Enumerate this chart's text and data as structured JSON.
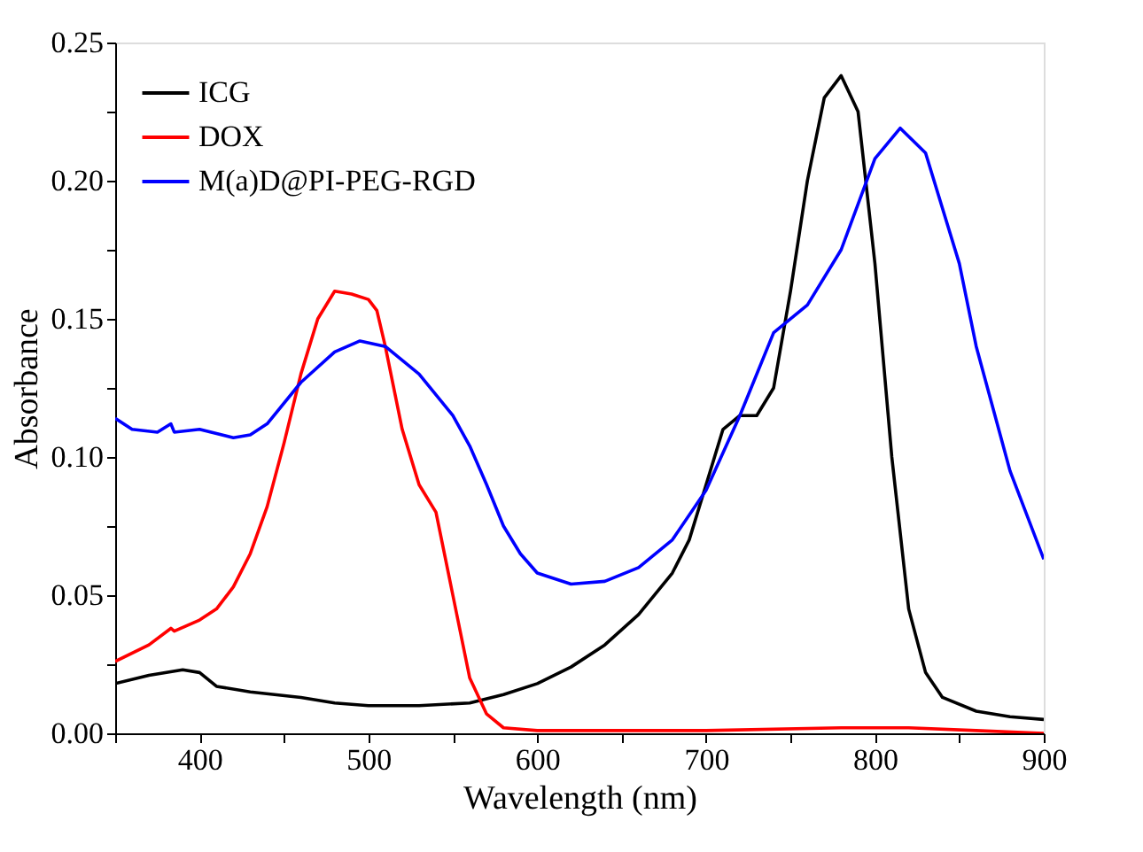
{
  "chart_data": {
    "type": "line",
    "xlabel": "Wavelength (nm)",
    "ylabel": "Absorbance",
    "xlim": [
      350,
      900
    ],
    "xticks": [
      {
        "value": 350,
        "label": null
      },
      400,
      {
        "value": 450,
        "label": null
      },
      500,
      {
        "value": 550,
        "label": null
      },
      600,
      {
        "value": 650,
        "label": null
      },
      700,
      {
        "value": 750,
        "label": null
      },
      800,
      {
        "value": 850,
        "label": null
      },
      900
    ],
    "ylim": [
      0,
      0.25
    ],
    "yticks": [
      {
        "value": 0,
        "label": "0.00"
      },
      {
        "value": 0.025,
        "label": null
      },
      0.05,
      {
        "value": 0.075,
        "label": null
      },
      {
        "value": 0.1,
        "label": "0.10"
      },
      {
        "value": 0.125,
        "label": null
      },
      0.15,
      {
        "value": 0.175,
        "label": null
      },
      {
        "value": 0.2,
        "label": "0.20"
      },
      {
        "value": 0.225,
        "label": null
      },
      0.25
    ],
    "legend": "top left",
    "grid": false,
    "marker": "none",
    "line_style": "solid",
    "series": [
      {
        "name": "ICG",
        "color": "#000000",
        "x": [
          350,
          370,
          390,
          400,
          410,
          430,
          460,
          480,
          500,
          530,
          560,
          580,
          600,
          620,
          640,
          660,
          680,
          690,
          700,
          710,
          720,
          730,
          740,
          750,
          760,
          770,
          780,
          790,
          800,
          810,
          820,
          830,
          840,
          860,
          880,
          900
        ],
        "values": [
          0.018,
          0.021,
          0.023,
          0.022,
          0.017,
          0.015,
          0.013,
          0.011,
          0.01,
          0.01,
          0.011,
          0.014,
          0.018,
          0.024,
          0.032,
          0.043,
          0.058,
          0.07,
          0.09,
          0.11,
          0.115,
          0.115,
          0.125,
          0.16,
          0.2,
          0.23,
          0.238,
          0.225,
          0.17,
          0.1,
          0.045,
          0.022,
          0.013,
          0.008,
          0.006,
          0.005
        ]
      },
      {
        "name": "DOX",
        "color": "#ff0000",
        "x": [
          350,
          370,
          383,
          385,
          400,
          410,
          420,
          430,
          440,
          450,
          460,
          470,
          480,
          490,
          500,
          505,
          510,
          520,
          530,
          540,
          550,
          560,
          570,
          580,
          600,
          700,
          780,
          820,
          860,
          900
        ],
        "values": [
          0.026,
          0.032,
          0.038,
          0.037,
          0.041,
          0.045,
          0.053,
          0.065,
          0.082,
          0.105,
          0.13,
          0.15,
          0.16,
          0.159,
          0.157,
          0.153,
          0.14,
          0.11,
          0.09,
          0.08,
          0.05,
          0.02,
          0.007,
          0.002,
          0.001,
          0.001,
          0.002,
          0.002,
          0.001,
          0.0
        ]
      },
      {
        "name": "M(a)D@PI-PEG-RGD",
        "color": "#0000ff",
        "x": [
          350,
          360,
          375,
          383,
          385,
          400,
          420,
          430,
          440,
          460,
          480,
          495,
          510,
          530,
          550,
          560,
          570,
          580,
          590,
          600,
          620,
          640,
          660,
          680,
          700,
          720,
          740,
          760,
          780,
          800,
          815,
          830,
          850,
          860,
          880,
          900
        ],
        "values": [
          0.114,
          0.11,
          0.109,
          0.112,
          0.109,
          0.11,
          0.107,
          0.108,
          0.112,
          0.127,
          0.138,
          0.142,
          0.14,
          0.13,
          0.115,
          0.104,
          0.09,
          0.075,
          0.065,
          0.058,
          0.054,
          0.055,
          0.06,
          0.07,
          0.088,
          0.115,
          0.145,
          0.155,
          0.175,
          0.208,
          0.219,
          0.21,
          0.17,
          0.14,
          0.095,
          0.063
        ]
      }
    ]
  }
}
